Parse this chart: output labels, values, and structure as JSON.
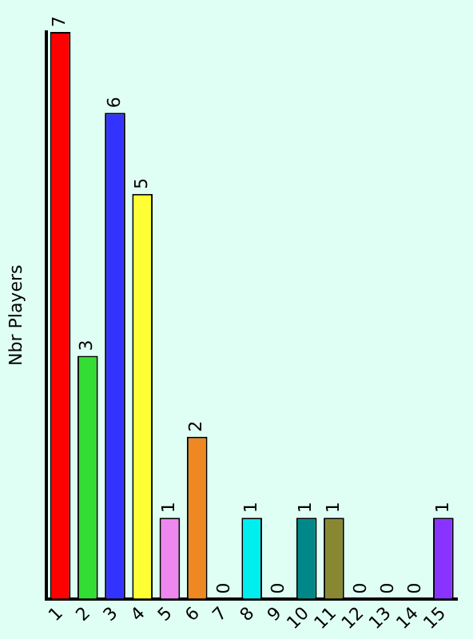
{
  "chart_data": {
    "type": "bar",
    "ylabel": "Nbr Players",
    "categories": [
      "1",
      "2",
      "3",
      "4",
      "5",
      "6",
      "7",
      "8",
      "9",
      "10",
      "11",
      "12",
      "13",
      "14",
      "15"
    ],
    "values": [
      7,
      3,
      6,
      5,
      1,
      2,
      0,
      1,
      0,
      1,
      1,
      0,
      0,
      0,
      1
    ],
    "colors": [
      "#ff0000",
      "#33dd33",
      "#3333ff",
      "#ffff33",
      "#ee88ee",
      "#ee8822",
      "#990099",
      "#00eeee",
      "#ff00ff",
      "#008888",
      "#888833",
      "#ffee44",
      "#88eeff",
      "#66dd00",
      "#8833ff"
    ],
    "data_labels": true,
    "grid": false,
    "legend": false
  }
}
